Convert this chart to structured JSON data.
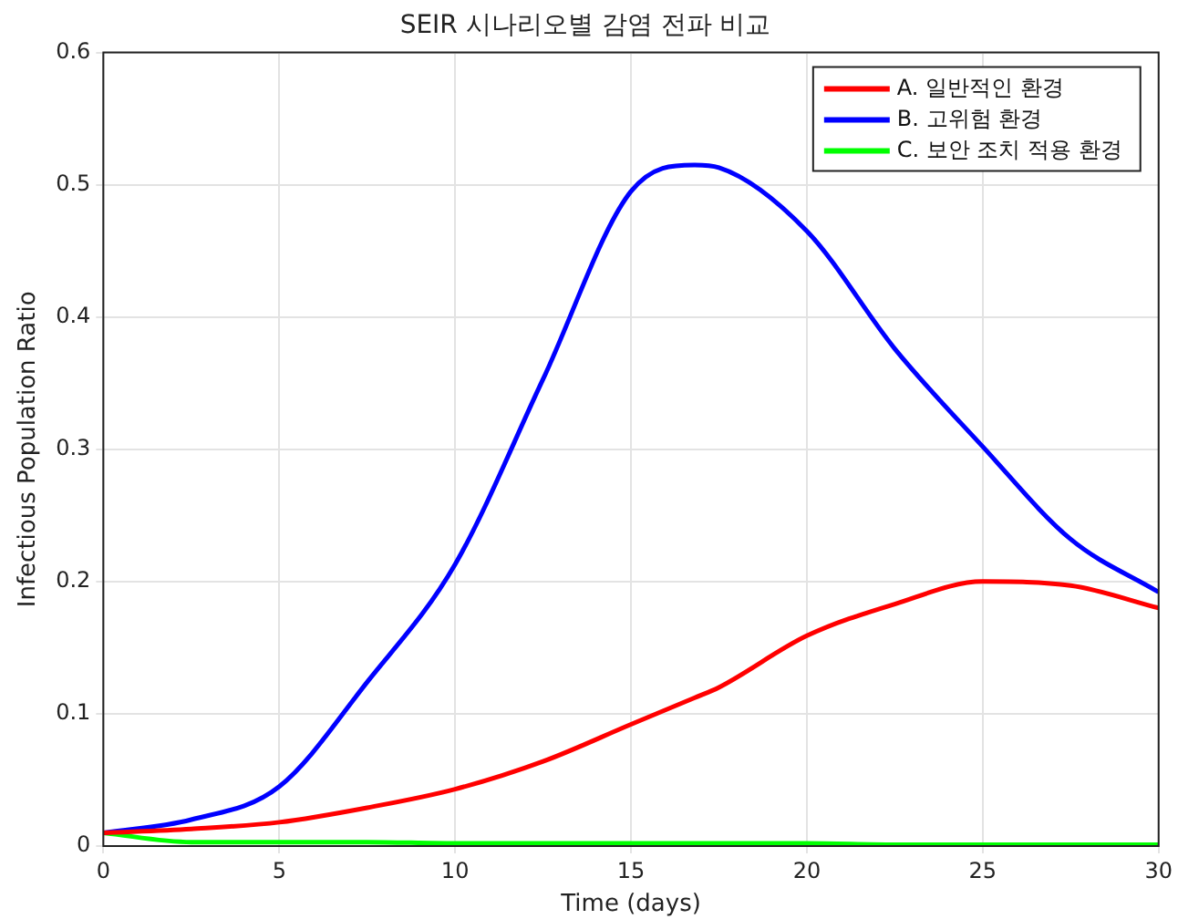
{
  "chart_data": {
    "type": "line",
    "title": "SEIR 시나리오별 감염 전파 비교",
    "xlabel": "Time (days)",
    "ylabel": "Infectious Population Ratio",
    "x": [
      0,
      2.5,
      5,
      7.5,
      10,
      12.5,
      15,
      16.8,
      17.5,
      20,
      22.5,
      25,
      27.5,
      30
    ],
    "series": [
      {
        "name": "A. 일반적인 환경",
        "color": "#ff0000",
        "values": [
          0.01,
          0.013,
          0.018,
          0.029,
          0.043,
          0.064,
          0.092,
          0.112,
          0.12,
          0.159,
          0.183,
          0.2,
          0.197,
          0.18
        ]
      },
      {
        "name": "B. 고위험 환경",
        "color": "#0000ff",
        "values": [
          0.01,
          0.02,
          0.045,
          0.124,
          0.213,
          0.353,
          0.495,
          0.515,
          0.513,
          0.465,
          0.376,
          0.302,
          0.232,
          0.192
        ]
      },
      {
        "name": "C. 보안 조치 적용 환경",
        "color": "#00ff00",
        "values": [
          0.01,
          0.003,
          0.003,
          0.003,
          0.002,
          0.002,
          0.002,
          0.002,
          0.002,
          0.002,
          0.001,
          0.001,
          0.001,
          0.001
        ]
      }
    ],
    "xlim": [
      0,
      30
    ],
    "xticks": [
      0,
      5,
      10,
      15,
      20,
      25,
      30
    ],
    "ylim": [
      0,
      0.6
    ],
    "yticks": [
      0,
      0.1,
      0.2,
      0.3,
      0.4,
      0.5,
      0.6
    ],
    "grid": true,
    "legend": "top right",
    "marker": "none",
    "line_style": "solid"
  }
}
